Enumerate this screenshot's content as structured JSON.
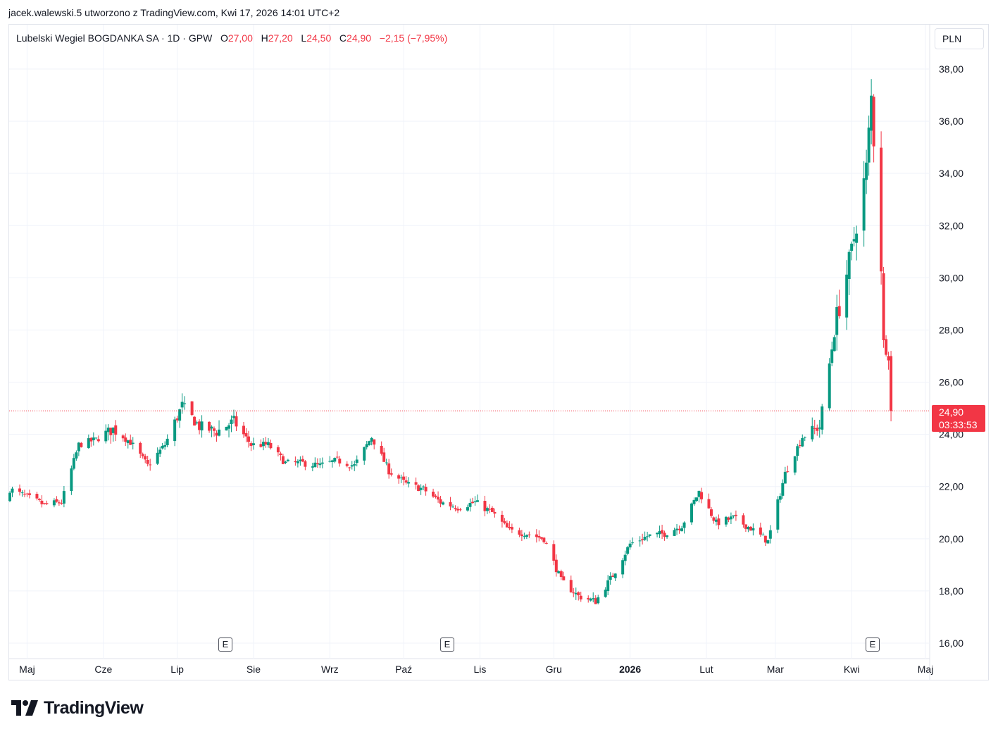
{
  "header": {
    "author_line": "jacek.walewski.5 utworzono z TradingView.com, Kwi 17, 2026 14:01 UTC+2"
  },
  "legend": {
    "symbol": "Lubelski Wegiel BOGDANKA SA · 1D · GPW",
    "o_label": "O",
    "o_value": "27,00",
    "h_label": "H",
    "h_value": "27,20",
    "l_label": "L",
    "l_value": "24,50",
    "c_label": "C",
    "c_value": "24,90",
    "change": "−2,15 (−7,95%)"
  },
  "currency": "PLN",
  "last_price": {
    "price": "24,90",
    "countdown": "03:33:53"
  },
  "earnings_marker": "E",
  "brand": {
    "name": "TradingView"
  },
  "colors": {
    "up": "#089981",
    "down": "#f23645",
    "grid": "#f0f3fa",
    "text": "#131722"
  },
  "chart_data": {
    "type": "candlestick",
    "y_axis_labels": [
      "38,00",
      "36,00",
      "34,00",
      "32,00",
      "30,00",
      "28,00",
      "26,00",
      "24,00",
      "22,00",
      "20,00",
      "18,00",
      "16,00"
    ],
    "x_axis_labels": [
      "Maj",
      "Cze",
      "Lip",
      "Sie",
      "Wrz",
      "Paź",
      "Lis",
      "Gru",
      "2026",
      "Lut",
      "Mar",
      "Kwi",
      "Maj"
    ],
    "ylim": [
      16,
      38
    ],
    "last_close": 24.9,
    "earnings": [
      "Sie",
      "Paź",
      "Kwi"
    ],
    "close_path": [
      [
        "2025-04-24",
        21.9
      ],
      [
        "2025-05-01",
        21.6
      ],
      [
        "2025-05-08",
        21.3
      ],
      [
        "2025-05-15",
        21.4
      ],
      [
        "2025-05-22",
        23.6
      ],
      [
        "2025-05-29",
        23.8
      ],
      [
        "2025-06-05",
        24.2
      ],
      [
        "2025-06-12",
        23.7
      ],
      [
        "2025-06-19",
        22.8
      ],
      [
        "2025-06-26",
        23.6
      ],
      [
        "2025-07-03",
        25.1
      ],
      [
        "2025-07-10",
        24.3
      ],
      [
        "2025-07-17",
        24.1
      ],
      [
        "2025-07-24",
        24.5
      ],
      [
        "2025-07-31",
        23.6
      ],
      [
        "2025-08-07",
        23.6
      ],
      [
        "2025-08-14",
        22.9
      ],
      [
        "2025-08-21",
        22.9
      ],
      [
        "2025-08-28",
        22.8
      ],
      [
        "2025-09-04",
        23.0
      ],
      [
        "2025-09-11",
        22.8
      ],
      [
        "2025-09-18",
        23.9
      ],
      [
        "2025-09-25",
        22.6
      ],
      [
        "2025-10-02",
        22.1
      ],
      [
        "2025-10-09",
        21.9
      ],
      [
        "2025-10-16",
        21.4
      ],
      [
        "2025-10-23",
        21.2
      ],
      [
        "2025-10-30",
        21.4
      ],
      [
        "2025-11-06",
        21.0
      ],
      [
        "2025-11-13",
        20.3
      ],
      [
        "2025-11-20",
        20.2
      ],
      [
        "2025-11-27",
        20.0
      ],
      [
        "2025-12-04",
        18.4
      ],
      [
        "2025-12-11",
        17.8
      ],
      [
        "2025-12-18",
        17.6
      ],
      [
        "2025-12-25",
        18.6
      ],
      [
        "2026-01-01",
        19.8
      ],
      [
        "2026-01-08",
        20.1
      ],
      [
        "2026-01-15",
        20.2
      ],
      [
        "2026-01-22",
        20.5
      ],
      [
        "2026-01-29",
        21.8
      ],
      [
        "2026-02-05",
        20.6
      ],
      [
        "2026-02-12",
        20.8
      ],
      [
        "2026-02-19",
        20.4
      ],
      [
        "2026-02-26",
        19.9
      ],
      [
        "2026-03-05",
        22.5
      ],
      [
        "2026-03-12",
        23.9
      ],
      [
        "2026-03-19",
        24.3
      ],
      [
        "2026-03-26",
        28.5
      ],
      [
        "2026-04-01",
        31.0
      ],
      [
        "2026-04-07",
        34.2
      ],
      [
        "2026-04-09",
        36.9
      ],
      [
        "2026-04-13",
        30.5
      ],
      [
        "2026-04-14",
        27.5
      ],
      [
        "2026-04-16",
        27.05
      ],
      [
        "2026-04-17",
        24.9
      ]
    ],
    "last_bar": {
      "date": "2026-04-17",
      "open": 27.0,
      "high": 27.2,
      "low": 24.5,
      "close": 24.9
    }
  }
}
